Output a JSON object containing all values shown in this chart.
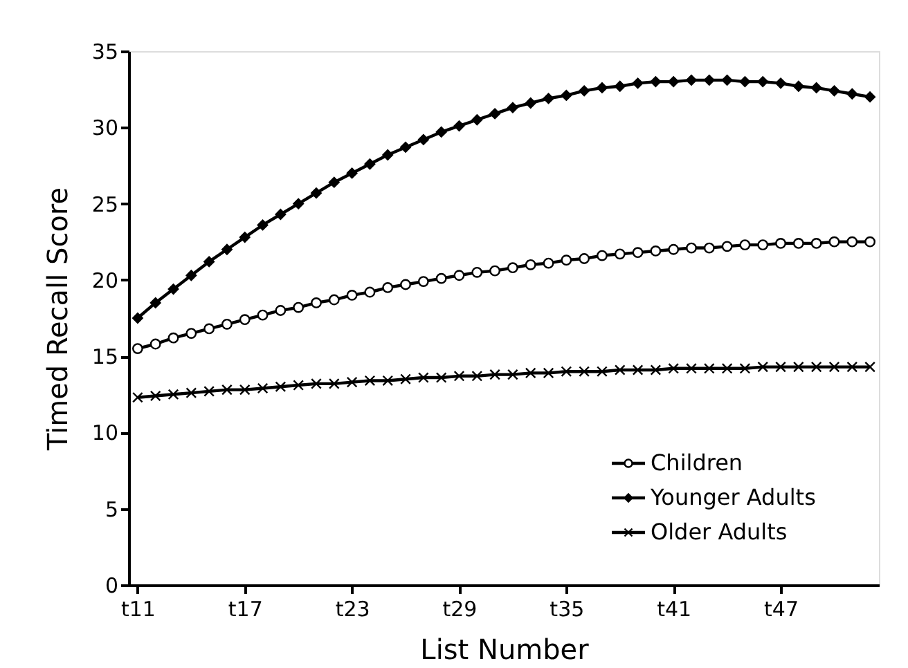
{
  "chart_data": {
    "type": "line",
    "xlabel": "List Number",
    "ylabel": "Timed Recall Score",
    "categories": [
      "t11",
      null,
      null,
      null,
      null,
      null,
      "t17",
      null,
      null,
      null,
      null,
      null,
      "t23",
      null,
      null,
      null,
      null,
      null,
      "t29",
      null,
      null,
      null,
      null,
      null,
      "t35",
      null,
      null,
      null,
      null,
      null,
      "t41",
      null,
      null,
      null,
      null,
      null,
      "t47",
      null,
      null,
      null,
      null,
      null
    ],
    "ylim": [
      0,
      35
    ],
    "yticks": [
      0,
      5,
      10,
      15,
      20,
      25,
      30,
      35
    ],
    "grid": false,
    "legend": "bottom right",
    "line_style": "solid",
    "series": [
      {
        "name": "Children",
        "color": "#000000",
        "marker": "circle",
        "values": [
          15.5,
          15.8,
          16.2,
          16.5,
          16.8,
          17.1,
          17.4,
          17.7,
          18.0,
          18.2,
          18.5,
          18.7,
          19.0,
          19.2,
          19.5,
          19.7,
          19.9,
          20.1,
          20.3,
          20.5,
          20.6,
          20.8,
          21.0,
          21.1,
          21.3,
          21.4,
          21.6,
          21.7,
          21.8,
          21.9,
          22.0,
          22.1,
          22.1,
          22.2,
          22.3,
          22.3,
          22.4,
          22.4,
          22.4,
          22.5,
          22.5,
          22.5
        ]
      },
      {
        "name": "Younger Adults",
        "color": "#000000",
        "marker": "diamond",
        "values": [
          17.5,
          18.5,
          19.4,
          20.3,
          21.2,
          22.0,
          22.8,
          23.6,
          24.3,
          25.0,
          25.7,
          26.4,
          27.0,
          27.6,
          28.2,
          28.7,
          29.2,
          29.7,
          30.1,
          30.5,
          30.9,
          31.3,
          31.6,
          31.9,
          32.1,
          32.4,
          32.6,
          32.7,
          32.9,
          33.0,
          33.0,
          33.1,
          33.1,
          33.1,
          33.0,
          33.0,
          32.9,
          32.7,
          32.6,
          32.4,
          32.2,
          32.0
        ]
      },
      {
        "name": "Older Adults",
        "color": "#000000",
        "marker": "cross",
        "values": [
          12.3,
          12.4,
          12.5,
          12.6,
          12.7,
          12.8,
          12.8,
          12.9,
          13.0,
          13.1,
          13.2,
          13.2,
          13.3,
          13.4,
          13.4,
          13.5,
          13.6,
          13.6,
          13.7,
          13.7,
          13.8,
          13.8,
          13.9,
          13.9,
          14.0,
          14.0,
          14.0,
          14.1,
          14.1,
          14.1,
          14.2,
          14.2,
          14.2,
          14.2,
          14.2,
          14.3,
          14.3,
          14.3,
          14.3,
          14.3,
          14.3,
          14.3
        ]
      }
    ]
  }
}
